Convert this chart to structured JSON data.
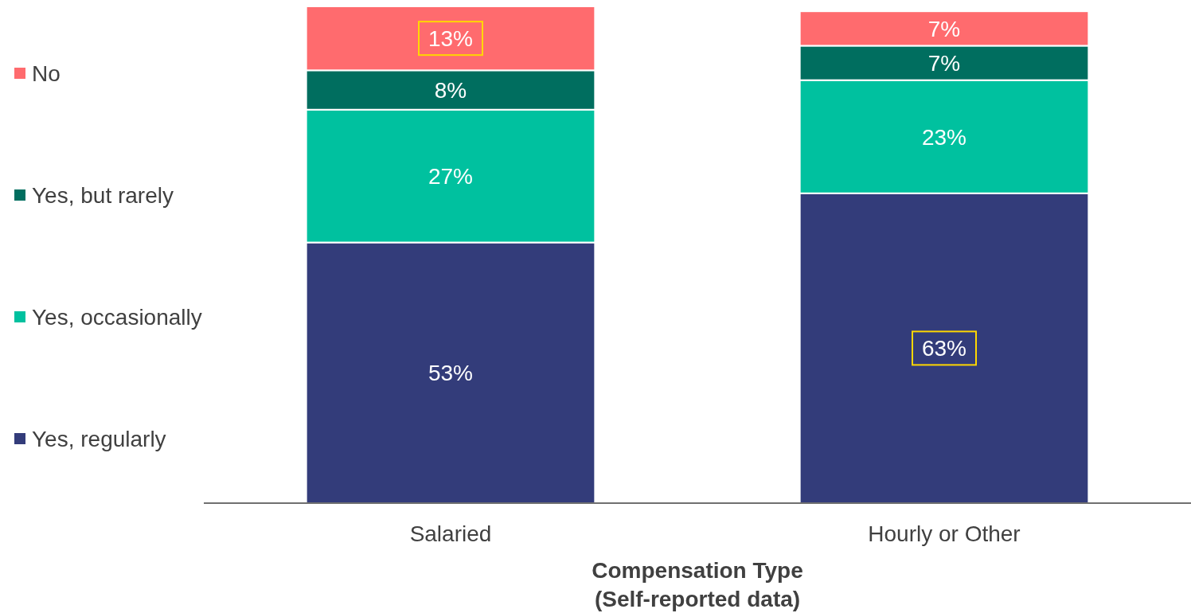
{
  "chart_data": {
    "type": "bar",
    "stacked": true,
    "categories": [
      "Salaried",
      "Hourly or Other"
    ],
    "xlabel": "Compensation Type\n(Self-reported data)",
    "series": [
      {
        "name": "Yes, regularly",
        "color": "#333c7a",
        "values": [
          53,
          63
        ],
        "value_labels": [
          "53%",
          "63%"
        ]
      },
      {
        "name": "Yes, occasionally",
        "color": "#00c19f",
        "values": [
          27,
          23
        ],
        "value_labels": [
          "27%",
          "23%"
        ]
      },
      {
        "name": "Yes, but rarely",
        "color": "#006e5f",
        "values": [
          8,
          7
        ],
        "value_labels": [
          "8%",
          "7%"
        ]
      },
      {
        "name": "No",
        "color": "#ff6b6e",
        "values": [
          13,
          7
        ],
        "value_labels": [
          "13%",
          "7%"
        ]
      }
    ],
    "legend": "left"
  }
}
